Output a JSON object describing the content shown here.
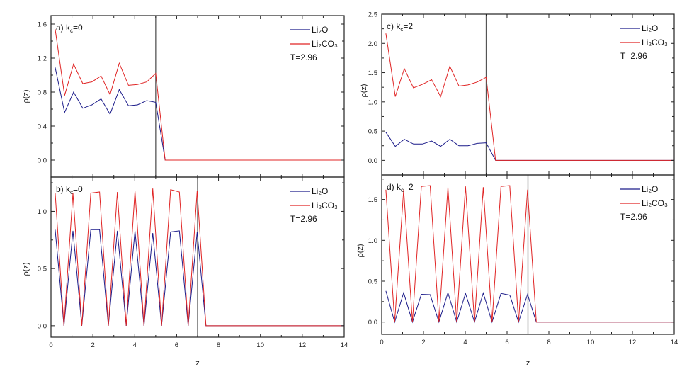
{
  "colors": {
    "Li2O": "#1c1c8a",
    "Li2CO3": "#e02424",
    "marker_line": "#555555",
    "axes": "#222222"
  },
  "chart_data": [
    {
      "type": "line",
      "panel_label": {
        "prefix": "a) k",
        "sub": "c",
        "suffix": "=0"
      },
      "xlabel": "",
      "ylabel": "ρ(z)",
      "xlim": [
        0,
        14
      ],
      "ylim": [
        -0.2,
        1.7
      ],
      "xticks": [
        0,
        2,
        4,
        6,
        8,
        10,
        12,
        14
      ],
      "show_xtick_labels": false,
      "yticks": [
        "0.0",
        "0.4",
        "0.8",
        "1.2",
        "1.6"
      ],
      "vline": 5,
      "annotation": "T=2.96",
      "x": [
        0.2,
        0.65,
        1.08,
        1.52,
        1.95,
        2.39,
        2.82,
        3.26,
        3.7,
        4.13,
        4.57,
        5.0,
        5.45,
        14
      ],
      "series": [
        {
          "name": "Li₂O",
          "key": "Li2O",
          "values": [
            1.09,
            0.56,
            0.8,
            0.61,
            0.65,
            0.72,
            0.54,
            0.83,
            0.64,
            0.65,
            0.7,
            0.68,
            0,
            0
          ]
        },
        {
          "name": "Li₂CO₃",
          "key": "Li2CO3",
          "values": [
            1.54,
            0.76,
            1.13,
            0.9,
            0.92,
            0.99,
            0.77,
            1.14,
            0.88,
            0.89,
            0.92,
            1.02,
            0,
            0
          ]
        }
      ]
    },
    {
      "type": "line",
      "panel_label": {
        "prefix": "b) k",
        "sub": "c",
        "suffix": "=0"
      },
      "xlabel": "z",
      "ylabel": "ρ(z)",
      "xlim": [
        0,
        14
      ],
      "ylim": [
        -0.1,
        1.3
      ],
      "xticks": [
        0,
        2,
        4,
        6,
        8,
        10,
        12,
        14
      ],
      "show_xtick_labels": true,
      "yticks": [
        "0.0",
        "0.5",
        "1.0"
      ],
      "vline": 7,
      "annotation": "T=2.96",
      "x": [
        0.2,
        0.62,
        1.05,
        1.47,
        1.9,
        2.32,
        2.74,
        3.17,
        3.59,
        4.01,
        4.44,
        4.86,
        5.28,
        5.71,
        6.13,
        6.55,
        6.98,
        7.4,
        14
      ],
      "series": [
        {
          "name": "Li₂O",
          "key": "Li2O",
          "values": [
            0.84,
            0,
            0.83,
            0,
            0.84,
            0.84,
            0,
            0.83,
            0,
            0.83,
            0,
            0.81,
            0,
            0.82,
            0.83,
            0,
            0.82,
            0,
            0
          ]
        },
        {
          "name": "Li₂CO₃",
          "key": "Li2CO3",
          "values": [
            1.16,
            0,
            1.16,
            0,
            1.16,
            1.17,
            0,
            1.17,
            0,
            1.18,
            0,
            1.2,
            0,
            1.19,
            1.17,
            0,
            1.18,
            0,
            0
          ]
        }
      ]
    },
    {
      "type": "line",
      "panel_label": {
        "prefix": "c) k",
        "sub": "c",
        "suffix": "=2"
      },
      "xlabel": "",
      "ylabel": "ρ(z)",
      "xlim": [
        0,
        14
      ],
      "ylim": [
        -0.25,
        2.5
      ],
      "xticks": [
        0,
        2,
        4,
        6,
        8,
        10,
        12,
        14
      ],
      "show_xtick_labels": false,
      "yticks": [
        "0.0",
        "0.5",
        "1.0",
        "1.5",
        "2.0",
        "2.5"
      ],
      "vline": 5,
      "annotation": "T=2.96",
      "x": [
        0.2,
        0.65,
        1.08,
        1.52,
        1.95,
        2.39,
        2.82,
        3.26,
        3.7,
        4.13,
        4.57,
        5.0,
        5.45,
        14
      ],
      "series": [
        {
          "name": "Li₂O",
          "key": "Li2O",
          "values": [
            0.48,
            0.24,
            0.36,
            0.28,
            0.28,
            0.33,
            0.24,
            0.36,
            0.25,
            0.25,
            0.29,
            0.3,
            0,
            0
          ]
        },
        {
          "name": "Li₂CO₃",
          "key": "Li2CO3",
          "values": [
            2.17,
            1.09,
            1.57,
            1.24,
            1.3,
            1.38,
            1.09,
            1.61,
            1.27,
            1.29,
            1.34,
            1.42,
            0,
            0
          ]
        }
      ]
    },
    {
      "type": "line",
      "panel_label": {
        "prefix": "d) k",
        "sub": "c",
        "suffix": "=2"
      },
      "xlabel": "z",
      "ylabel": "ρ(z)",
      "xlim": [
        0,
        14
      ],
      "ylim": [
        -0.15,
        1.8
      ],
      "xticks": [
        0,
        2,
        4,
        6,
        8,
        10,
        12,
        14
      ],
      "show_xtick_labels": true,
      "yticks": [
        "0.0",
        "0.5",
        "1.0",
        "1.5"
      ],
      "vline": 7,
      "annotation": "T=2.96",
      "x": [
        0.2,
        0.62,
        1.05,
        1.47,
        1.9,
        2.32,
        2.74,
        3.17,
        3.59,
        4.01,
        4.44,
        4.86,
        5.28,
        5.71,
        6.13,
        6.55,
        6.98,
        7.4,
        14
      ],
      "series": [
        {
          "name": "Li₂O",
          "key": "Li2O",
          "values": [
            0.38,
            0,
            0.36,
            0,
            0.34,
            0.335,
            0,
            0.36,
            0,
            0.35,
            0,
            0.355,
            0,
            0.35,
            0.33,
            0,
            0.34,
            0,
            0
          ]
        },
        {
          "name": "Li₂CO₃",
          "key": "Li2CO3",
          "values": [
            1.62,
            0,
            1.62,
            0,
            1.66,
            1.67,
            0,
            1.65,
            0,
            1.66,
            0,
            1.65,
            0,
            1.66,
            1.67,
            0,
            1.62,
            0,
            0
          ]
        }
      ]
    }
  ]
}
